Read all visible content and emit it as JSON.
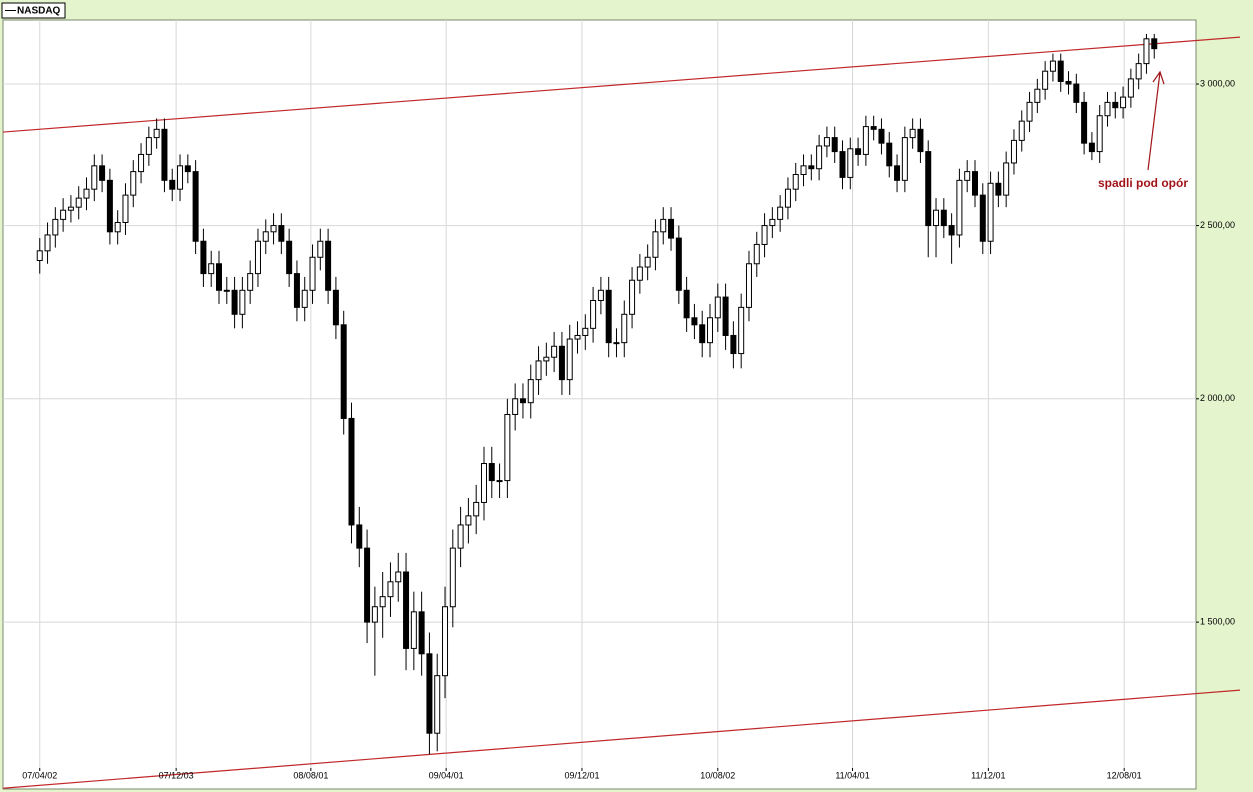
{
  "chart_data": {
    "type": "candlestick",
    "x": [
      "07/04/02",
      "07/04/16",
      "07/04/30",
      "07/05/14",
      "07/05/28",
      "07/06/11",
      "07/06/25",
      "07/07/09",
      "07/07/23",
      "07/08/06",
      "07/08/20",
      "07/09/03",
      "07/09/17",
      "07/10/01",
      "07/10/15",
      "07/10/29",
      "07/11/12",
      "07/11/26",
      "07/12/10",
      "07/12/24",
      "08/01/07",
      "08/01/21",
      "08/02/04",
      "08/02/18",
      "08/03/03",
      "08/03/17",
      "08/03/31",
      "08/04/14",
      "08/04/28",
      "08/05/12",
      "08/05/26",
      "08/06/09",
      "08/06/23",
      "08/07/07",
      "08/07/21",
      "08/08/04",
      "08/08/18",
      "08/09/01",
      "08/09/15",
      "08/09/29",
      "08/10/13",
      "08/10/27",
      "08/11/10",
      "08/11/24",
      "08/12/08",
      "08/12/22",
      "09/01/05",
      "09/01/19",
      "09/02/02",
      "09/02/16",
      "09/03/02",
      "09/03/16",
      "09/03/30",
      "09/04/13",
      "09/04/27",
      "09/05/11",
      "09/05/25",
      "09/06/08",
      "09/06/22",
      "09/07/06",
      "09/07/20",
      "09/08/03",
      "09/08/17",
      "09/08/31",
      "09/09/14",
      "09/09/28",
      "09/10/12",
      "09/10/26",
      "09/11/09",
      "09/11/23",
      "09/12/07",
      "09/12/21",
      "10/01/04",
      "10/01/18",
      "10/02/01",
      "10/02/15",
      "10/03/01",
      "10/03/15",
      "10/03/29",
      "10/04/12",
      "10/04/26",
      "10/05/10",
      "10/05/24",
      "10/06/07",
      "10/06/21",
      "10/07/05",
      "10/07/19",
      "10/08/02",
      "10/08/16",
      "10/08/30",
      "10/09/13",
      "10/09/27",
      "10/10/11",
      "10/10/25",
      "10/11/08",
      "10/11/22",
      "10/12/06",
      "10/12/20",
      "11/01/03",
      "11/01/17",
      "11/01/31",
      "11/02/14",
      "11/02/28",
      "11/03/14",
      "11/03/28",
      "11/04/11",
      "11/04/25",
      "11/05/09",
      "11/05/23",
      "11/06/06",
      "11/06/20",
      "11/07/04",
      "11/07/18",
      "11/08/01",
      "11/08/15",
      "11/08/29",
      "11/09/12",
      "11/09/26",
      "11/10/10",
      "11/10/24",
      "11/11/07",
      "11/11/21",
      "11/12/05",
      "11/12/19",
      "12/01/02",
      "12/01/16",
      "12/01/30",
      "12/02/13",
      "12/02/27",
      "12/03/12",
      "12/03/26",
      "12/04/09",
      "12/04/23",
      "12/05/07",
      "12/05/21",
      "12/06/04",
      "12/06/18",
      "12/07/02",
      "12/07/16",
      "12/07/30",
      "12/08/13",
      "12/08/27",
      "12/09/10",
      "12/09/24"
    ],
    "series": [
      {
        "name": "NASDAQ",
        "color": "#000000",
        "open": [
          2390,
          2420,
          2470,
          2520,
          2550,
          2560,
          2590,
          2620,
          2700,
          2650,
          2480,
          2510,
          2600,
          2680,
          2740,
          2800,
          2830,
          2650,
          2620,
          2700,
          2680,
          2450,
          2350,
          2380,
          2300,
          2300,
          2230,
          2300,
          2350,
          2450,
          2480,
          2500,
          2450,
          2350,
          2250,
          2300,
          2400,
          2450,
          2300,
          2200,
          1950,
          1700,
          1650,
          1500,
          1530,
          1550,
          1580,
          1600,
          1450,
          1520,
          1440,
          1300,
          1400,
          1530,
          1650,
          1700,
          1720,
          1750,
          1840,
          1800,
          1800,
          1960,
          2000,
          1990,
          2050,
          2100,
          2110,
          2140,
          2050,
          2160,
          2170,
          2190,
          2270,
          2300,
          2150,
          2150,
          2230,
          2330,
          2370,
          2400,
          2480,
          2520,
          2460,
          2300,
          2220,
          2200,
          2150,
          2220,
          2280,
          2170,
          2120,
          2250,
          2380,
          2440,
          2500,
          2520,
          2560,
          2620,
          2670,
          2700,
          2690,
          2770,
          2800,
          2750,
          2660,
          2760,
          2740,
          2840,
          2830,
          2780,
          2700,
          2650,
          2800,
          2830,
          2750,
          2500,
          2550,
          2500,
          2470,
          2650,
          2680,
          2600,
          2450,
          2640,
          2600,
          2710,
          2790,
          2860,
          2930,
          2980,
          3050,
          3090,
          3010,
          3000,
          2930,
          2780,
          2750,
          2880,
          2930,
          2910,
          2950,
          3020,
          3080,
          3180
        ],
        "high": [
          2460,
          2510,
          2560,
          2590,
          2600,
          2630,
          2660,
          2740,
          2740,
          2690,
          2550,
          2640,
          2720,
          2780,
          2840,
          2870,
          2870,
          2690,
          2740,
          2740,
          2720,
          2490,
          2420,
          2420,
          2340,
          2340,
          2340,
          2390,
          2490,
          2520,
          2540,
          2540,
          2490,
          2390,
          2340,
          2440,
          2490,
          2490,
          2340,
          2240,
          1990,
          1740,
          1690,
          1570,
          1600,
          1620,
          1640,
          1640,
          1560,
          1560,
          1480,
          1440,
          1570,
          1690,
          1740,
          1760,
          1790,
          1880,
          1880,
          1840,
          2000,
          2040,
          2040,
          2090,
          2140,
          2150,
          2180,
          2180,
          2200,
          2210,
          2230,
          2310,
          2340,
          2340,
          2190,
          2270,
          2370,
          2410,
          2440,
          2520,
          2560,
          2560,
          2500,
          2340,
          2260,
          2240,
          2260,
          2320,
          2320,
          2210,
          2290,
          2420,
          2480,
          2540,
          2560,
          2600,
          2660,
          2710,
          2740,
          2740,
          2810,
          2840,
          2840,
          2790,
          2800,
          2800,
          2880,
          2880,
          2870,
          2820,
          2740,
          2840,
          2870,
          2870,
          2790,
          2590,
          2590,
          2540,
          2690,
          2720,
          2720,
          2640,
          2680,
          2680,
          2750,
          2830,
          2900,
          2970,
          3020,
          3090,
          3120,
          3120,
          3050,
          3040,
          2970,
          2820,
          2920,
          2970,
          2970,
          2990,
          3060,
          3120,
          3200,
          3200
        ],
        "low": [
          2350,
          2380,
          2430,
          2480,
          2510,
          2520,
          2550,
          2580,
          2610,
          2440,
          2440,
          2470,
          2560,
          2640,
          2700,
          2760,
          2610,
          2580,
          2580,
          2640,
          2410,
          2310,
          2310,
          2260,
          2260,
          2190,
          2190,
          2260,
          2310,
          2410,
          2440,
          2410,
          2310,
          2210,
          2210,
          2260,
          2360,
          2260,
          2160,
          1910,
          1660,
          1610,
          1460,
          1400,
          1470,
          1510,
          1540,
          1410,
          1410,
          1400,
          1265,
          1270,
          1360,
          1490,
          1610,
          1660,
          1680,
          1710,
          1760,
          1760,
          1760,
          1920,
          1950,
          1950,
          2010,
          2060,
          2070,
          2010,
          2010,
          2120,
          2130,
          2150,
          2230,
          2110,
          2110,
          2110,
          2190,
          2290,
          2330,
          2360,
          2440,
          2420,
          2260,
          2180,
          2160,
          2110,
          2110,
          2180,
          2130,
          2080,
          2080,
          2210,
          2340,
          2400,
          2460,
          2480,
          2520,
          2580,
          2630,
          2650,
          2650,
          2730,
          2710,
          2620,
          2620,
          2700,
          2700,
          2790,
          2740,
          2660,
          2610,
          2610,
          2760,
          2710,
          2400,
          2400,
          2460,
          2380,
          2430,
          2610,
          2560,
          2410,
          2410,
          2560,
          2560,
          2670,
          2750,
          2820,
          2890,
          2940,
          3010,
          2970,
          2960,
          2890,
          2740,
          2720,
          2710,
          2840,
          2870,
          2870,
          2910,
          2980,
          3040,
          3100
        ],
        "close": [
          2420,
          2470,
          2520,
          2550,
          2560,
          2590,
          2620,
          2700,
          2650,
          2480,
          2510,
          2600,
          2680,
          2740,
          2800,
          2830,
          2650,
          2620,
          2700,
          2680,
          2450,
          2350,
          2380,
          2300,
          2300,
          2230,
          2300,
          2350,
          2450,
          2480,
          2500,
          2450,
          2350,
          2250,
          2300,
          2400,
          2450,
          2300,
          2200,
          1950,
          1700,
          1650,
          1500,
          1530,
          1550,
          1580,
          1600,
          1450,
          1520,
          1440,
          1300,
          1400,
          1530,
          1650,
          1700,
          1720,
          1750,
          1840,
          1800,
          1800,
          1960,
          2000,
          1990,
          2050,
          2100,
          2110,
          2140,
          2050,
          2160,
          2170,
          2190,
          2270,
          2300,
          2150,
          2150,
          2230,
          2330,
          2370,
          2400,
          2480,
          2520,
          2460,
          2300,
          2220,
          2200,
          2150,
          2220,
          2280,
          2170,
          2120,
          2250,
          2380,
          2440,
          2500,
          2520,
          2560,
          2620,
          2670,
          2700,
          2690,
          2770,
          2800,
          2750,
          2660,
          2760,
          2740,
          2840,
          2830,
          2780,
          2700,
          2650,
          2800,
          2830,
          2750,
          2500,
          2550,
          2500,
          2470,
          2650,
          2680,
          2600,
          2450,
          2640,
          2600,
          2710,
          2790,
          2860,
          2930,
          2980,
          3050,
          3090,
          3010,
          3000,
          2930,
          2780,
          2750,
          2880,
          2930,
          2910,
          2950,
          3020,
          3080,
          3180,
          3140
        ]
      }
    ],
    "xlim": [
      "07/01/26",
      "12/12/08"
    ],
    "xticks": [
      "07/04/02",
      "07/12/03",
      "08/08/01",
      "09/04/01",
      "09/12/01",
      "10/08/02",
      "11/04/01",
      "11/12/01",
      "12/08/01"
    ],
    "ylim": [
      1243,
      3258
    ],
    "yticks": [
      {
        "value": 1500,
        "label": "1 500,00"
      },
      {
        "value": 2000,
        "label": "2 000,00"
      },
      {
        "value": 2500,
        "label": "2 500,00"
      },
      {
        "value": 3000,
        "label": "3 000,00"
      }
    ],
    "log_scale_y": true,
    "grid": true,
    "legend": "top-left",
    "trend_lines": [
      {
        "color": "#c0282a",
        "start": [
          "07/01/26",
          2820
        ],
        "end": [
          "12/12/08",
          3173
        ]
      },
      {
        "color": "#c0282a",
        "start": [
          "07/01/26",
          1211
        ],
        "end": [
          "12/12/08",
          1368
        ]
      }
    ],
    "annotation": {
      "text": "spadli pod opór",
      "color": "#a01418"
    }
  }
}
